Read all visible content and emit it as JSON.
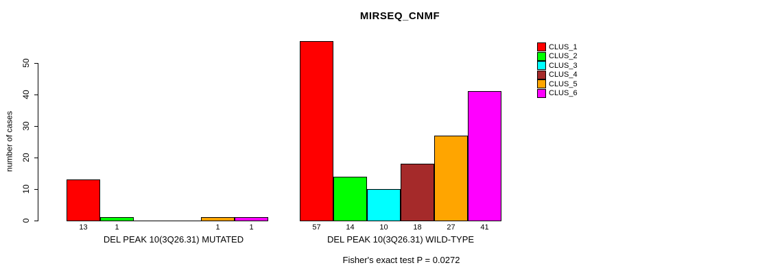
{
  "chart_data": {
    "type": "bar",
    "title": "MIRSEQ_CNMF",
    "ylabel": "number of cases",
    "xlabel": "",
    "ylim": [
      0,
      50
    ],
    "yticks": [
      0,
      10,
      20,
      30,
      40,
      50
    ],
    "grid": false,
    "legend_position": "right",
    "series_names": [
      "CLUS_1",
      "CLUS_2",
      "CLUS_3",
      "CLUS_4",
      "CLUS_5",
      "CLUS_6"
    ],
    "series_colors": [
      "#FF0000",
      "#00FF00",
      "#00FFFF",
      "#A52A2A",
      "#FFA500",
      "#FF00FF"
    ],
    "groups": [
      {
        "label": "DEL PEAK 10(3Q26.31) MUTATED",
        "values": [
          13,
          1,
          0,
          0,
          1,
          1
        ],
        "bar_labels": [
          "13",
          "1",
          "",
          "",
          "1",
          "1"
        ]
      },
      {
        "label": "DEL PEAK 10(3Q26.31) WILD-TYPE",
        "values": [
          57,
          14,
          10,
          18,
          27,
          41
        ],
        "bar_labels": [
          "57",
          "14",
          "10",
          "18",
          "27",
          "41"
        ]
      }
    ],
    "annotation": "Fisher's exact test P = 0.0272"
  }
}
